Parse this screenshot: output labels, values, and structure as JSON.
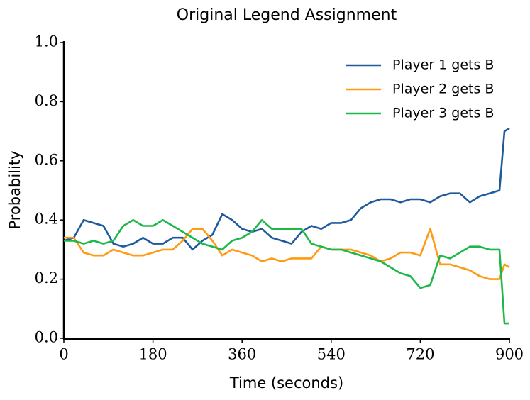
{
  "chart_data": {
    "type": "line",
    "title": "Original Legend Assignment",
    "x_label": "Time (seconds)",
    "y_label": "Probability",
    "x": [
      0,
      20,
      40,
      60,
      80,
      100,
      120,
      140,
      160,
      180,
      200,
      220,
      240,
      260,
      280,
      300,
      320,
      340,
      360,
      380,
      400,
      420,
      440,
      460,
      480,
      500,
      520,
      540,
      560,
      580,
      600,
      620,
      640,
      660,
      680,
      700,
      720,
      740,
      760,
      780,
      800,
      820,
      840,
      860,
      880,
      890,
      900
    ],
    "series": [
      {
        "name": "Player 1 gets B",
        "color": "#1f5a9c",
        "values": [
          0.33,
          0.34,
          0.4,
          0.39,
          0.38,
          0.32,
          0.31,
          0.32,
          0.34,
          0.32,
          0.32,
          0.34,
          0.34,
          0.3,
          0.33,
          0.35,
          0.42,
          0.4,
          0.37,
          0.36,
          0.37,
          0.34,
          0.33,
          0.32,
          0.36,
          0.38,
          0.37,
          0.39,
          0.39,
          0.4,
          0.44,
          0.46,
          0.47,
          0.47,
          0.46,
          0.47,
          0.47,
          0.46,
          0.48,
          0.49,
          0.49,
          0.46,
          0.48,
          0.49,
          0.5,
          0.7,
          0.71
        ]
      },
      {
        "name": "Player 2 gets B",
        "color": "#ff9a12",
        "values": [
          0.34,
          0.34,
          0.29,
          0.28,
          0.28,
          0.3,
          0.29,
          0.28,
          0.28,
          0.29,
          0.3,
          0.3,
          0.33,
          0.37,
          0.37,
          0.33,
          0.28,
          0.3,
          0.29,
          0.28,
          0.26,
          0.27,
          0.26,
          0.27,
          0.27,
          0.27,
          0.31,
          0.3,
          0.3,
          0.3,
          0.29,
          0.28,
          0.26,
          0.27,
          0.29,
          0.29,
          0.28,
          0.37,
          0.25,
          0.25,
          0.24,
          0.23,
          0.21,
          0.2,
          0.2,
          0.25,
          0.24
        ]
      },
      {
        "name": "Player 3 gets B",
        "color": "#1db84a",
        "values": [
          0.33,
          0.33,
          0.32,
          0.33,
          0.32,
          0.33,
          0.38,
          0.4,
          0.38,
          0.38,
          0.4,
          0.38,
          0.36,
          0.34,
          0.32,
          0.31,
          0.3,
          0.33,
          0.34,
          0.36,
          0.4,
          0.37,
          0.37,
          0.37,
          0.37,
          0.32,
          0.31,
          0.3,
          0.3,
          0.29,
          0.28,
          0.27,
          0.26,
          0.24,
          0.22,
          0.21,
          0.17,
          0.18,
          0.28,
          0.27,
          0.29,
          0.31,
          0.31,
          0.3,
          0.3,
          0.05,
          0.05
        ]
      }
    ],
    "xlim": [
      0,
      900
    ],
    "xticks": [
      0,
      180,
      360,
      540,
      720,
      900
    ],
    "ylim": [
      0,
      1
    ],
    "yticks": [
      {
        "value": 0,
        "label": "0.0"
      },
      {
        "value": 0.2,
        "label": "0.2"
      },
      {
        "value": 0.4,
        "label": "0.4"
      },
      {
        "value": 0.6,
        "label": "0.6"
      },
      {
        "value": 0.8,
        "label": "0.8"
      },
      {
        "value": 1,
        "label": "1.0"
      }
    ],
    "grid": false,
    "legend": "upper right"
  }
}
